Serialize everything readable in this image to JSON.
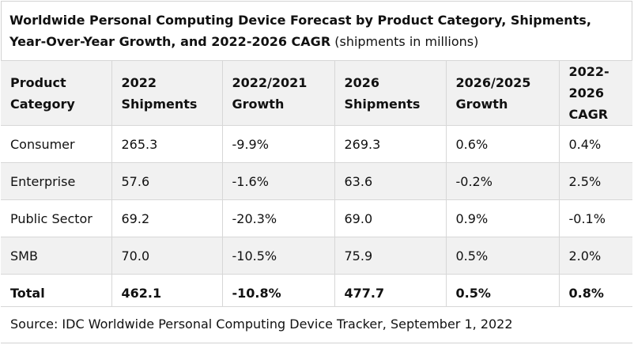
{
  "title": {
    "bold": "Worldwide Personal Computing Device Forecast by Product Category, Shipments, Year-Over-Year Growth, and 2022-2026 CAGR",
    "subtitle": "(shipments in millions)"
  },
  "chart_data": {
    "type": "table",
    "columns": [
      "Product Category",
      "2022 Shipments",
      "2022/2021 Growth",
      "2026 Shipments",
      "2026/2025 Growth",
      "2022-2026 CAGR"
    ],
    "rows": [
      [
        "Consumer",
        "265.3",
        "-9.9%",
        "269.3",
        "0.6%",
        "0.4%"
      ],
      [
        "Enterprise",
        "57.6",
        "-1.6%",
        "63.6",
        "-0.2%",
        "2.5%"
      ],
      [
        "Public Sector",
        "69.2",
        "-20.3%",
        "69.0",
        "0.9%",
        "-0.1%"
      ],
      [
        "SMB",
        "70.0",
        "-10.5%",
        "75.9",
        "0.5%",
        "2.0%"
      ],
      [
        "Total",
        "462.1",
        "-10.8%",
        "477.7",
        "0.5%",
        "0.8%"
      ]
    ]
  },
  "source": "Source: IDC Worldwide Personal Computing Device Tracker, September 1, 2022"
}
